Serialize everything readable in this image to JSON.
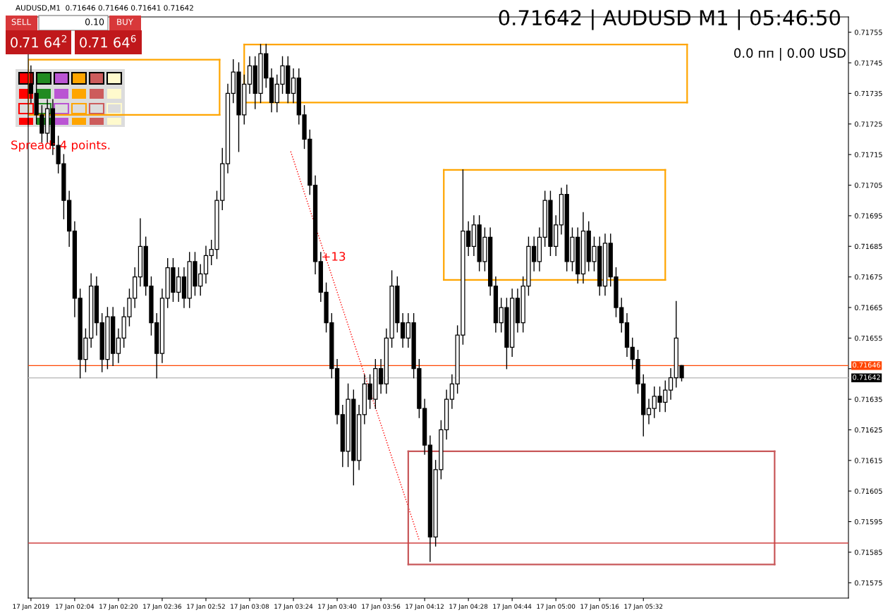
{
  "chart_data": {
    "type": "candlestick",
    "title": "AUDUSD,M1  0.71646 0.71646 0.71641 0.71642",
    "subtitle": "0.71642 | AUDUSD M1 | 05:46:50",
    "annotations": [
      "0.0 пп | 0.00 USD",
      "Spread: 4 points.",
      "SELL",
      "0.10",
      "BUY",
      "0.71 64$^{2}$",
      "0.71 64$^{6}$",
      "+13"
    ],
    "x": [
      "2019-01-17T01:48",
      "2019-01-17T01:50",
      "2019-01-17T01:52",
      "2019-01-17T01:54",
      "2019-01-17T01:56",
      "2019-01-17T01:58",
      "2019-01-17T02:00",
      "2019-01-17T02:02",
      "2019-01-17T02:04",
      "2019-01-17T02:06",
      "2019-01-17T02:08",
      "2019-01-17T02:10",
      "2019-01-17T02:12",
      "2019-01-17T02:14",
      "2019-01-17T02:16",
      "2019-01-17T02:18",
      "2019-01-17T02:20",
      "2019-01-17T02:22",
      "2019-01-17T02:24",
      "2019-01-17T02:26",
      "2019-01-17T02:28",
      "2019-01-17T02:30",
      "2019-01-17T02:32",
      "2019-01-17T02:34",
      "2019-01-17T02:36",
      "2019-01-17T02:38",
      "2019-01-17T02:40",
      "2019-01-17T02:42",
      "2019-01-17T02:44",
      "2019-01-17T02:46",
      "2019-01-17T02:48",
      "2019-01-17T02:50",
      "2019-01-17T02:52",
      "2019-01-17T02:54",
      "2019-01-17T02:56",
      "2019-01-17T02:58",
      "2019-01-17T03:00",
      "2019-01-17T03:02",
      "2019-01-17T03:04",
      "2019-01-17T03:06",
      "2019-01-17T03:08",
      "2019-01-17T03:10",
      "2019-01-17T03:12",
      "2019-01-17T03:14",
      "2019-01-17T03:16",
      "2019-01-17T03:18",
      "2019-01-17T03:20",
      "2019-01-17T03:22",
      "2019-01-17T03:24",
      "2019-01-17T03:26",
      "2019-01-17T03:28",
      "2019-01-17T03:30",
      "2019-01-17T03:32",
      "2019-01-17T03:34",
      "2019-01-17T03:36",
      "2019-01-17T03:38",
      "2019-01-17T03:40",
      "2019-01-17T03:42",
      "2019-01-17T03:44",
      "2019-01-17T03:46",
      "2019-01-17T03:48",
      "2019-01-17T03:50",
      "2019-01-17T03:52",
      "2019-01-17T03:54",
      "2019-01-17T03:56",
      "2019-01-17T03:58",
      "2019-01-17T04:00",
      "2019-01-17T04:02",
      "2019-01-17T04:04",
      "2019-01-17T04:06",
      "2019-01-17T04:08",
      "2019-01-17T04:10",
      "2019-01-17T04:12",
      "2019-01-17T04:14",
      "2019-01-17T04:16",
      "2019-01-17T04:18",
      "2019-01-17T04:20",
      "2019-01-17T04:22",
      "2019-01-17T04:24",
      "2019-01-17T04:26",
      "2019-01-17T04:28",
      "2019-01-17T04:30",
      "2019-01-17T04:32",
      "2019-01-17T04:34",
      "2019-01-17T04:36",
      "2019-01-17T04:38",
      "2019-01-17T04:40",
      "2019-01-17T04:42",
      "2019-01-17T04:44",
      "2019-01-17T04:46",
      "2019-01-17T04:48",
      "2019-01-17T04:50",
      "2019-01-17T04:52",
      "2019-01-17T04:54",
      "2019-01-17T04:56",
      "2019-01-17T04:58",
      "2019-01-17T05:00",
      "2019-01-17T05:02",
      "2019-01-17T05:04",
      "2019-01-17T05:06",
      "2019-01-17T05:08",
      "2019-01-17T05:10",
      "2019-01-17T05:12",
      "2019-01-17T05:14",
      "2019-01-17T05:16",
      "2019-01-17T05:18",
      "2019-01-17T05:20",
      "2019-01-17T05:22",
      "2019-01-17T05:24",
      "2019-01-17T05:26",
      "2019-01-17T05:28",
      "2019-01-17T05:30",
      "2019-01-17T05:32",
      "2019-01-17T05:34",
      "2019-01-17T05:36",
      "2019-01-17T05:38",
      "2019-01-17T05:40",
      "2019-01-17T05:42",
      "2019-01-17T05:44",
      "2019-01-17T05:46"
    ],
    "ohlc": [
      [
        0.71738,
        0.71744,
        0.71732,
        0.71735
      ],
      [
        0.71735,
        0.71738,
        0.71725,
        0.71728
      ],
      [
        0.71728,
        0.71731,
        0.71719,
        0.71722
      ],
      [
        0.71722,
        0.71733,
        0.71719,
        0.7173
      ],
      [
        0.7173,
        0.71733,
        0.71715,
        0.71718
      ],
      [
        0.71718,
        0.71721,
        0.71709,
        0.71712
      ],
      [
        0.71712,
        0.71715,
        0.71694,
        0.717
      ],
      [
        0.717,
        0.71703,
        0.71685,
        0.7169
      ],
      [
        0.7169,
        0.71693,
        0.71662,
        0.71668
      ],
      [
        0.71668,
        0.71671,
        0.71642,
        0.71648
      ],
      [
        0.71648,
        0.71658,
        0.71644,
        0.71655
      ],
      [
        0.71655,
        0.71676,
        0.71652,
        0.71672
      ],
      [
        0.71672,
        0.71675,
        0.71656,
        0.7166
      ],
      [
        0.7166,
        0.71663,
        0.71644,
        0.71648
      ],
      [
        0.71648,
        0.71665,
        0.71645,
        0.71662
      ],
      [
        0.71662,
        0.71665,
        0.71646,
        0.7165
      ],
      [
        0.7165,
        0.71658,
        0.71647,
        0.71655
      ],
      [
        0.71655,
        0.71665,
        0.71652,
        0.71662
      ],
      [
        0.71662,
        0.71671,
        0.71659,
        0.71668
      ],
      [
        0.71668,
        0.71678,
        0.71665,
        0.71675
      ],
      [
        0.71675,
        0.71694,
        0.71672,
        0.71685
      ],
      [
        0.71685,
        0.71688,
        0.71669,
        0.71672
      ],
      [
        0.71672,
        0.71675,
        0.71656,
        0.7166
      ],
      [
        0.7166,
        0.71663,
        0.71642,
        0.7165
      ],
      [
        0.7165,
        0.71671,
        0.71647,
        0.71668
      ],
      [
        0.71668,
        0.71681,
        0.71665,
        0.71678
      ],
      [
        0.71678,
        0.71681,
        0.71667,
        0.7167
      ],
      [
        0.7167,
        0.71678,
        0.71667,
        0.71675
      ],
      [
        0.71675,
        0.71678,
        0.71665,
        0.71668
      ],
      [
        0.71668,
        0.71683,
        0.71665,
        0.7168
      ],
      [
        0.7168,
        0.71683,
        0.71669,
        0.71672
      ],
      [
        0.71672,
        0.71679,
        0.71669,
        0.71676
      ],
      [
        0.71676,
        0.71685,
        0.71673,
        0.71682
      ],
      [
        0.71682,
        0.71687,
        0.71679,
        0.71684
      ],
      [
        0.71684,
        0.71703,
        0.71681,
        0.717
      ],
      [
        0.717,
        0.71717,
        0.71697,
        0.71712
      ],
      [
        0.71712,
        0.71738,
        0.71709,
        0.71735
      ],
      [
        0.71735,
        0.71746,
        0.71732,
        0.71742
      ],
      [
        0.71742,
        0.71745,
        0.71716,
        0.71728
      ],
      [
        0.71728,
        0.71741,
        0.71725,
        0.71738
      ],
      [
        0.71738,
        0.71747,
        0.71735,
        0.71744
      ],
      [
        0.71744,
        0.71747,
        0.7173,
        0.71735
      ],
      [
        0.71735,
        0.71751,
        0.71732,
        0.71748
      ],
      [
        0.71748,
        0.71751,
        0.71737,
        0.7174
      ],
      [
        0.7174,
        0.71743,
        0.71729,
        0.71732
      ],
      [
        0.71732,
        0.71741,
        0.71729,
        0.71738
      ],
      [
        0.71738,
        0.71747,
        0.71735,
        0.71744
      ],
      [
        0.71744,
        0.71747,
        0.71732,
        0.71735
      ],
      [
        0.71735,
        0.71743,
        0.71732,
        0.7174
      ],
      [
        0.7174,
        0.71743,
        0.71725,
        0.71728
      ],
      [
        0.71728,
        0.71731,
        0.71717,
        0.7172
      ],
      [
        0.7172,
        0.71723,
        0.71702,
        0.71705
      ],
      [
        0.71705,
        0.71708,
        0.71676,
        0.7168
      ],
      [
        0.7168,
        0.71683,
        0.71667,
        0.7167
      ],
      [
        0.7167,
        0.71673,
        0.71657,
        0.7166
      ],
      [
        0.7166,
        0.71663,
        0.71642,
        0.71645
      ],
      [
        0.71645,
        0.71648,
        0.71627,
        0.7163
      ],
      [
        0.7163,
        0.71633,
        0.71613,
        0.71618
      ],
      [
        0.71618,
        0.7164,
        0.71613,
        0.71635
      ],
      [
        0.71635,
        0.71638,
        0.71607,
        0.71615
      ],
      [
        0.71615,
        0.71633,
        0.71612,
        0.7163
      ],
      [
        0.7163,
        0.71643,
        0.71627,
        0.7164
      ],
      [
        0.7164,
        0.71643,
        0.71632,
        0.71635
      ],
      [
        0.71635,
        0.71648,
        0.71632,
        0.71645
      ],
      [
        0.71645,
        0.71648,
        0.71637,
        0.7164
      ],
      [
        0.7164,
        0.71658,
        0.71637,
        0.71655
      ],
      [
        0.71655,
        0.71677,
        0.71652,
        0.71672
      ],
      [
        0.71672,
        0.71675,
        0.71657,
        0.7166
      ],
      [
        0.7166,
        0.71663,
        0.71652,
        0.71655
      ],
      [
        0.71655,
        0.71663,
        0.71652,
        0.7166
      ],
      [
        0.7166,
        0.71663,
        0.71642,
        0.71645
      ],
      [
        0.71645,
        0.71648,
        0.71629,
        0.71632
      ],
      [
        0.71632,
        0.71635,
        0.71617,
        0.7162
      ],
      [
        0.7162,
        0.71623,
        0.71582,
        0.7159
      ],
      [
        0.7159,
        0.71615,
        0.71587,
        0.71612
      ],
      [
        0.71612,
        0.71628,
        0.71609,
        0.71625
      ],
      [
        0.71625,
        0.71638,
        0.71622,
        0.71635
      ],
      [
        0.71635,
        0.71643,
        0.71632,
        0.7164
      ],
      [
        0.7164,
        0.71659,
        0.71637,
        0.71656
      ],
      [
        0.71656,
        0.7171,
        0.71653,
        0.7169
      ],
      [
        0.7169,
        0.71693,
        0.71682,
        0.71685
      ],
      [
        0.71685,
        0.71695,
        0.71682,
        0.71692
      ],
      [
        0.71692,
        0.71695,
        0.71677,
        0.7168
      ],
      [
        0.7168,
        0.71691,
        0.71677,
        0.71688
      ],
      [
        0.71688,
        0.71691,
        0.71669,
        0.71672
      ],
      [
        0.71672,
        0.71675,
        0.71657,
        0.7166
      ],
      [
        0.7166,
        0.71668,
        0.71657,
        0.71665
      ],
      [
        0.71665,
        0.71668,
        0.71645,
        0.71652
      ],
      [
        0.71652,
        0.71671,
        0.71649,
        0.71668
      ],
      [
        0.71668,
        0.71671,
        0.71657,
        0.7166
      ],
      [
        0.7166,
        0.71675,
        0.71657,
        0.71672
      ],
      [
        0.71672,
        0.71688,
        0.71669,
        0.71685
      ],
      [
        0.71685,
        0.71688,
        0.71677,
        0.7168
      ],
      [
        0.7168,
        0.71691,
        0.71677,
        0.71688
      ],
      [
        0.71688,
        0.71703,
        0.71685,
        0.717
      ],
      [
        0.717,
        0.71703,
        0.71682,
        0.71685
      ],
      [
        0.71685,
        0.71695,
        0.71682,
        0.71692
      ],
      [
        0.71692,
        0.71704,
        0.71689,
        0.71702
      ],
      [
        0.71702,
        0.71705,
        0.71677,
        0.7168
      ],
      [
        0.7168,
        0.71691,
        0.71677,
        0.71688
      ],
      [
        0.71688,
        0.71691,
        0.71673,
        0.71676
      ],
      [
        0.71676,
        0.71696,
        0.71673,
        0.7169
      ],
      [
        0.7169,
        0.71693,
        0.71677,
        0.7168
      ],
      [
        0.7168,
        0.71688,
        0.71677,
        0.71685
      ],
      [
        0.71685,
        0.71688,
        0.71669,
        0.71672
      ],
      [
        0.71672,
        0.71689,
        0.71669,
        0.71686
      ],
      [
        0.71686,
        0.71689,
        0.71672,
        0.71675
      ],
      [
        0.71675,
        0.71678,
        0.71662,
        0.71665
      ],
      [
        0.71665,
        0.71668,
        0.71657,
        0.7166
      ],
      [
        0.7166,
        0.71663,
        0.71649,
        0.71652
      ],
      [
        0.71652,
        0.71655,
        0.71645,
        0.71648
      ],
      [
        0.71648,
        0.71651,
        0.71637,
        0.7164
      ],
      [
        0.7164,
        0.71643,
        0.71623,
        0.7163
      ],
      [
        0.7163,
        0.71635,
        0.71627,
        0.71632
      ],
      [
        0.71632,
        0.71639,
        0.71629,
        0.71636
      ],
      [
        0.71636,
        0.71639,
        0.71631,
        0.71634
      ],
      [
        0.71634,
        0.71641,
        0.71631,
        0.71638
      ],
      [
        0.71638,
        0.71645,
        0.71635,
        0.71642
      ],
      [
        0.71642,
        0.71667,
        0.71639,
        0.71655
      ],
      [
        0.71646,
        0.71646,
        0.71641,
        0.71642
      ]
    ],
    "series": [
      {
        "type": "line",
        "color": "#ffa500",
        "x": [
          "2019-01-17T01:47",
          "2019-01-17T02:57"
        ],
        "values": [
          0.71746,
          0.71746
        ]
      },
      {
        "type": "line",
        "color": "#ffa500",
        "x": [
          "2019-01-17T01:47",
          "2019-01-17T02:57"
        ],
        "values": [
          0.71728,
          0.71728
        ]
      },
      {
        "type": "line",
        "color": "#ffa500",
        "x": [
          "2019-01-17T03:06",
          "2019-01-17T05:48"
        ],
        "values": [
          0.71751,
          0.71751
        ]
      },
      {
        "type": "line",
        "color": "#ffa500",
        "x": [
          "2019-01-17T03:06",
          "2019-01-17T05:48"
        ],
        "values": [
          0.71732,
          0.71732
        ]
      },
      {
        "type": "line",
        "color": "#ffa500",
        "x": [
          "2019-01-17T04:19",
          "2019-01-17T05:40"
        ],
        "values": [
          0.7171,
          0.7171
        ]
      },
      {
        "type": "line",
        "color": "#ffa500",
        "x": [
          "2019-01-17T04:19",
          "2019-01-17T05:40"
        ],
        "values": [
          0.71674,
          0.71674
        ]
      },
      {
        "type": "line",
        "color": "#c8585a",
        "x": [
          "2019-01-17T04:06",
          "2019-01-17T06:20"
        ],
        "values": [
          0.71618,
          0.71618
        ]
      },
      {
        "type": "line",
        "color": "#c8585a",
        "x": [
          "2019-01-17T04:06",
          "2019-01-17T06:20"
        ],
        "values": [
          0.71581,
          0.71581
        ]
      },
      {
        "type": "line",
        "color": "#ff0000",
        "line_style": "dotted",
        "x": [
          "2019-01-17T03:23",
          "2019-01-17T04:10"
        ],
        "values": [
          0.71716,
          0.71589
        ]
      }
    ],
    "ref_lines": [
      {
        "axis": "y",
        "value": 0.71646,
        "label": "0.71646",
        "color": "#ff4500"
      },
      {
        "axis": "y",
        "value": 0.71642,
        "label": "0.71642",
        "color": "#c0c0c0"
      },
      {
        "axis": "y",
        "value": 0.71588,
        "color": "#d04040"
      }
    ],
    "xlim": [
      "2019-01-17T01:47",
      "2019-01-17T06:47"
    ],
    "xticks": [
      {
        "value": "2019-01-17T01:48",
        "label": "17 Jan 2019"
      },
      {
        "value": "2019-01-17T02:04",
        "label": "17 Jan 02:04"
      },
      {
        "value": "2019-01-17T02:20",
        "label": "17 Jan 02:20"
      },
      {
        "value": "2019-01-17T02:36",
        "label": "17 Jan 02:36"
      },
      {
        "value": "2019-01-17T02:52",
        "label": "17 Jan 02:52"
      },
      {
        "value": "2019-01-17T03:08",
        "label": "17 Jan 03:08"
      },
      {
        "value": "2019-01-17T03:24",
        "label": "17 Jan 03:24"
      },
      {
        "value": "2019-01-17T03:40",
        "label": "17 Jan 03:40"
      },
      {
        "value": "2019-01-17T03:56",
        "label": "17 Jan 03:56"
      },
      {
        "value": "2019-01-17T04:12",
        "label": "17 Jan 04:12"
      },
      {
        "value": "2019-01-17T04:28",
        "label": "17 Jan 04:28"
      },
      {
        "value": "2019-01-17T04:44",
        "label": "17 Jan 04:44"
      },
      {
        "value": "2019-01-17T05:00",
        "label": "17 Jan 05:00"
      },
      {
        "value": "2019-01-17T05:16",
        "label": "17 Jan 05:16"
      },
      {
        "value": "2019-01-17T05:32",
        "label": "17 Jan 05:32"
      }
    ],
    "ylim": [
      0.7157,
      0.7176
    ],
    "yticks": [
      0.71575,
      0.71585,
      0.71595,
      0.71605,
      0.71615,
      0.71625,
      0.71635,
      {
        "value": 0.71645,
        "label": null
      },
      0.71655,
      0.71665,
      0.71675,
      0.71685,
      0.71695,
      0.71705,
      0.71715,
      0.71725,
      0.71735,
      0.71745,
      0.71755
    ],
    "grid": false,
    "legend": false
  }
}
